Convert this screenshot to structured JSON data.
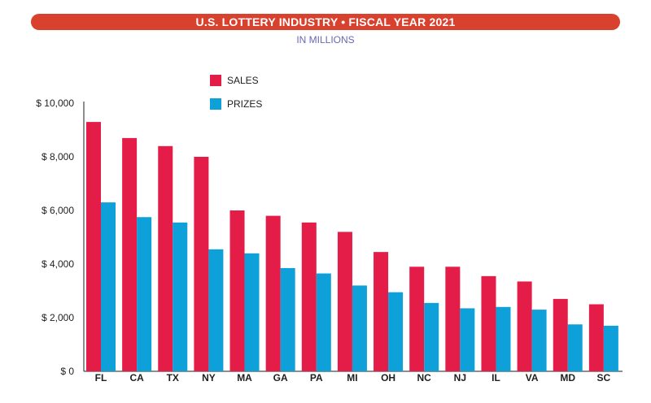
{
  "title": "U.S. LOTTERY INDUSTRY • FISCAL YEAR 2021",
  "subtitle": "IN MILLIONS",
  "colors": {
    "banner": "#d9412f",
    "sales": "#e31c48",
    "prizes": "#0ea0d9",
    "axis": "#1e1e1e"
  },
  "chart_data": {
    "type": "bar",
    "categories": [
      "FL",
      "CA",
      "TX",
      "NY",
      "MA",
      "GA",
      "PA",
      "MI",
      "OH",
      "NC",
      "NJ",
      "IL",
      "VA",
      "MD",
      "SC"
    ],
    "series": [
      {
        "name": "SALES",
        "values": [
          9300,
          8700,
          8400,
          8000,
          6000,
          5800,
          5550,
          5200,
          4450,
          3900,
          3900,
          3550,
          3350,
          2700,
          2500
        ]
      },
      {
        "name": "PRIZES",
        "values": [
          6300,
          5750,
          5550,
          4550,
          4400,
          3850,
          3650,
          3200,
          2950,
          2550,
          2350,
          2400,
          2300,
          1750,
          1700
        ]
      }
    ],
    "yticks": [
      "$ 0",
      "$ 2,000",
      "$ 4,000",
      "$ 6,000",
      "$ 8,000",
      "$ 10,000"
    ],
    "ytick_values": [
      0,
      2000,
      4000,
      6000,
      8000,
      10000
    ],
    "ylim": [
      0,
      10000
    ],
    "legend_position": "top-left",
    "grid": false
  }
}
